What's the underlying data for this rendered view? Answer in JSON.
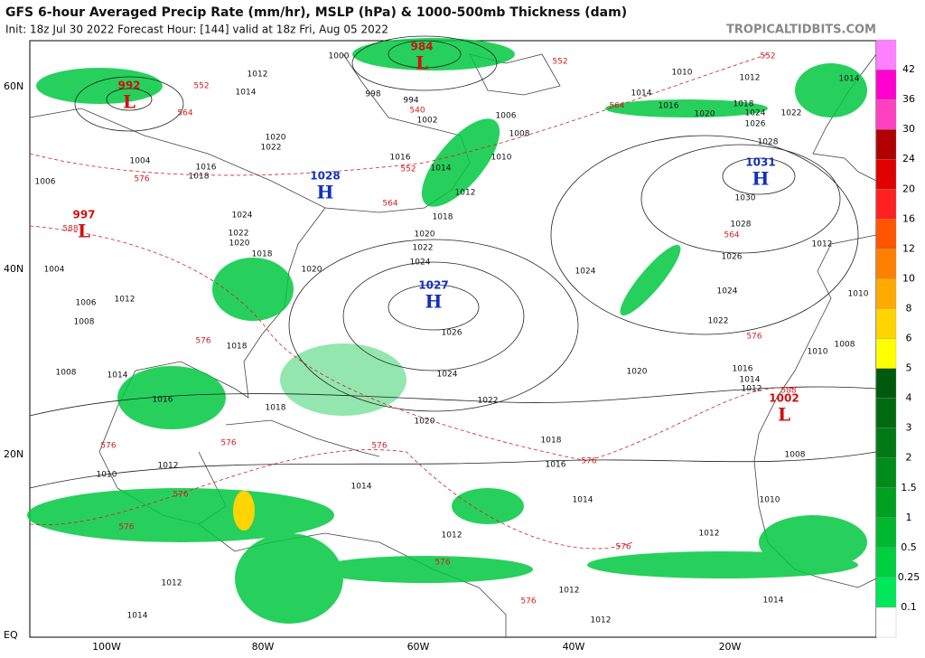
{
  "header": {
    "title": "GFS 6-hour Averaged Precip Rate (mm/hr), MSLP (hPa) & 1000-500mb Thickness (dam)",
    "init": "Init: 18z Jul 30 2022   Forecast Hour: [144]   valid at 18z Fri, Aug 05 2022",
    "site": "TROPICALTIDBITS.COM"
  },
  "latitude_labels": [
    "60N",
    "40N",
    "20N",
    "EQ"
  ],
  "longitude_labels": [
    "100W",
    "80W",
    "60W",
    "40W",
    "20W"
  ],
  "colorbar": {
    "labels": [
      "0.1",
      "0.25",
      "0.5",
      "1",
      "1.5",
      "2",
      "3",
      "4",
      "5",
      "6",
      "8",
      "10",
      "12",
      "16",
      "20",
      "24",
      "30",
      "36",
      "42"
    ],
    "colors": [
      "#ffffff",
      "#00e85a",
      "#00d040",
      "#00b830",
      "#00a020",
      "#008c1a",
      "#007a14",
      "#006a10",
      "#005a0c",
      "#ffff00",
      "#ffd400",
      "#ffaa00",
      "#ff8000",
      "#ff5500",
      "#ff2020",
      "#e00000",
      "#b00000",
      "#ff40c0",
      "#ff00d0",
      "#ff80ff"
    ]
  },
  "pressure_centers": [
    {
      "type": "L",
      "value": "984",
      "color": "#d01010"
    },
    {
      "type": "L",
      "value": "992",
      "color": "#d01010"
    },
    {
      "type": "L",
      "value": "997",
      "color": "#d01010"
    },
    {
      "type": "H",
      "value": "1028",
      "color": "#1030c0"
    },
    {
      "type": "H",
      "value": "1027",
      "color": "#1030c0"
    },
    {
      "type": "H",
      "value": "1031",
      "color": "#1030c0"
    },
    {
      "type": "L",
      "value": "1002",
      "color": "#d01010"
    }
  ],
  "isobar_labels": [
    "1012",
    "1014",
    "1020",
    "1022",
    "1016",
    "1018",
    "1024",
    "1022",
    "1020",
    "1018",
    "1012",
    "1006",
    "1008",
    "1004",
    "1008",
    "1014",
    "1016",
    "1018",
    "1018",
    "1020",
    "1022",
    "1024",
    "1026",
    "1024",
    "1022",
    "1020",
    "1018",
    "1016",
    "1014",
    "1014",
    "1012",
    "1012",
    "1012",
    "1012",
    "1014",
    "1012",
    "1010",
    "1010",
    "1008",
    "1012",
    "1014",
    "1012",
    "1014",
    "1016",
    "1020",
    "1022",
    "1024",
    "1026",
    "1028",
    "1030",
    "1024",
    "1026",
    "1028",
    "1024",
    "1022",
    "1020",
    "1018",
    "1016",
    "1014",
    "1012",
    "1010",
    "1014",
    "1012",
    "1010",
    "1010",
    "1008",
    "1018",
    "1020",
    "1012",
    "1014",
    "1010",
    "1008",
    "1006",
    "1016",
    "1002",
    "994",
    "998",
    "1000",
    "1004",
    "1006"
  ],
  "thickness_labels": [
    "552",
    "564",
    "576",
    "588",
    "552",
    "564",
    "576",
    "552",
    "564",
    "564",
    "576",
    "588",
    "576",
    "576",
    "576",
    "576",
    "576",
    "576",
    "576",
    "576",
    "576",
    "552",
    "540"
  ]
}
